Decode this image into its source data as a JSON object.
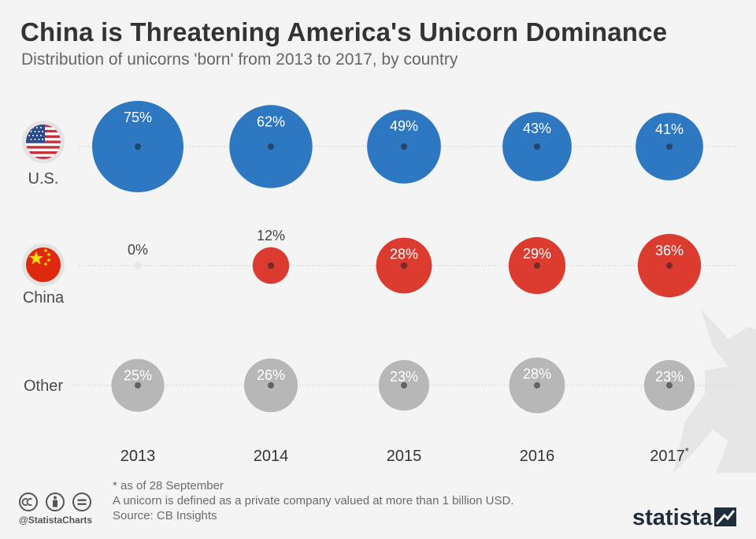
{
  "header": {
    "title": "China is Threatening America's Unicorn Dominance",
    "subtitle": "Distribution of unicorns 'born' from 2013 to 2017, by country"
  },
  "chart_data": {
    "type": "bubble-grid",
    "title": "China is Threatening America's Unicorn Dominance",
    "subtitle": "Distribution of unicorns 'born' from 2013 to 2017, by country",
    "categories": [
      "2013",
      "2014",
      "2015",
      "2016",
      "2017"
    ],
    "category_marks": [
      "",
      "",
      "",
      "",
      "*"
    ],
    "unit": "%",
    "series": [
      {
        "name": "U.S.",
        "color": "#2e78c2",
        "flag": "us-flag-icon",
        "values": [
          75,
          62,
          49,
          43,
          41
        ]
      },
      {
        "name": "China",
        "color": "#dc3c2f",
        "flag": "china-flag-icon",
        "values": [
          0,
          12,
          28,
          29,
          36
        ]
      },
      {
        "name": "Other",
        "color": "#b7b7b7",
        "flag": "",
        "values": [
          25,
          26,
          23,
          28,
          23
        ]
      }
    ]
  },
  "footer": {
    "note": "* as of 28 September",
    "definition": "A unicorn is defined as a private company valued at more than 1 billion USD.",
    "source": "Source: CB Insights",
    "handle": "@StatistaCharts",
    "brand": "statista"
  },
  "colors": {
    "background": "#f4f4f4",
    "us": "#2e78c2",
    "china": "#dc3c2f",
    "other": "#b7b7b7",
    "title": "#333333",
    "brand": "#1f2d3d"
  }
}
